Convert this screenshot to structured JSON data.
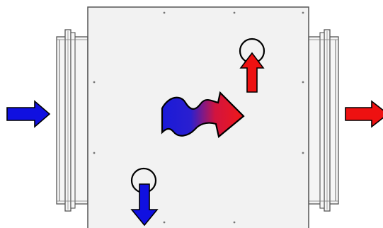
{
  "colors": {
    "inlet": "#1010e0",
    "outlet": "#ee1111",
    "housing_fill": "#f2f2f2",
    "housing_stroke": "#555555",
    "collar_fill": "#f5f5f5",
    "outline": "#000000"
  },
  "icons": {
    "supply_in": "arrow-right-icon",
    "supply_out": "arrow-right-icon",
    "heat_flow": "heat-transfer-icon",
    "exhaust_up": "arrow-up-icon",
    "intake_down": "arrow-down-icon",
    "port_top": "circle-port-icon",
    "port_bottom": "circle-port-icon"
  }
}
